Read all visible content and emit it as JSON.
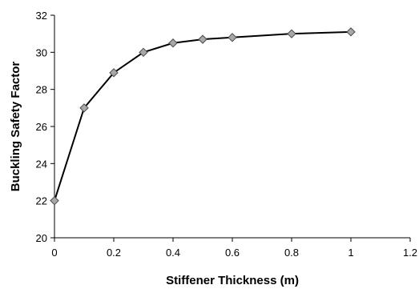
{
  "chart_data": {
    "type": "line",
    "title": "",
    "xlabel": "Stiffener Thickness (m)",
    "ylabel": "Buckling Safety Factor",
    "xlim": [
      0,
      1.2
    ],
    "ylim": [
      20,
      32
    ],
    "x_ticks": [
      "0",
      "0.2",
      "0.4",
      "0.6",
      "0.8",
      "1",
      "1.2"
    ],
    "y_ticks": [
      "20",
      "22",
      "24",
      "26",
      "28",
      "30",
      "32"
    ],
    "grid": false,
    "legend": "none",
    "series": [
      {
        "color": "#000000",
        "marker": "diamond",
        "marker_color": "#a8a8a8",
        "x": [
          0,
          0.1,
          0.2,
          0.3,
          0.4,
          0.5,
          0.6,
          0.8,
          1.0
        ],
        "y": [
          22.0,
          27.0,
          28.9,
          30.0,
          30.5,
          30.7,
          30.8,
          31.0,
          31.1
        ]
      }
    ]
  }
}
